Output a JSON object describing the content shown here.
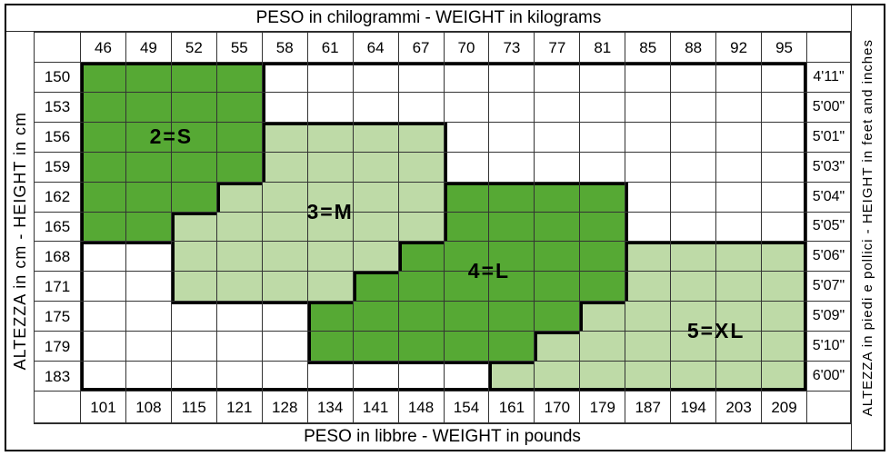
{
  "titles": {
    "top": "PESO in chilogrammi -  WEIGHT in kilograms",
    "bottom": "PESO in libbre -  WEIGHT in pounds",
    "left": "ALTEZZA in cm  -  HEIGHT in cm",
    "right": "ALTEZZA in piedi e pollici - HEIGHT in feet and inches"
  },
  "colors": {
    "size_fill_dark": "#56A934",
    "size_fill_light": "#BEDAA7",
    "grid_line": "#333333",
    "region_border": "#000000",
    "background": "#FFFFFF"
  },
  "chart_data": {
    "type": "heatmap",
    "x_axis_top": {
      "label": "PESO in chilogrammi -  WEIGHT in kilograms",
      "unit": "kg",
      "ticks": [
        46,
        49,
        52,
        55,
        58,
        61,
        64,
        67,
        70,
        73,
        77,
        81,
        85,
        88,
        92,
        95
      ]
    },
    "x_axis_bottom": {
      "label": "PESO in libbre -  WEIGHT in pounds",
      "unit": "lb",
      "ticks": [
        101,
        108,
        115,
        121,
        128,
        134,
        141,
        148,
        154,
        161,
        170,
        179,
        187,
        194,
        203,
        209
      ]
    },
    "y_axis_left": {
      "label": "ALTEZZA in cm  -  HEIGHT in cm",
      "unit": "cm",
      "ticks": [
        150,
        153,
        156,
        159,
        162,
        165,
        168,
        171,
        175,
        179,
        183
      ]
    },
    "y_axis_right": {
      "label": "ALTEZZA in piedi e pollici - HEIGHT in feet and inches",
      "unit": "ft-in",
      "ticks": [
        "4'11\"",
        "5'00\"",
        "5'01\"",
        "5'03\"",
        "5'04\"",
        "5'05\"",
        "5'06\"",
        "5'07\"",
        "5'09\"",
        "5'10\"",
        "6'00\""
      ]
    },
    "regions": [
      {
        "id": "S",
        "label": "2=S",
        "shade": "dark",
        "kg_span_by_cm": {
          "150": [
            46,
            55
          ],
          "153": [
            46,
            55
          ],
          "156": [
            46,
            55
          ],
          "159": [
            46,
            55
          ],
          "162": [
            46,
            52
          ],
          "165": [
            46,
            49
          ]
        }
      },
      {
        "id": "M",
        "label": "3=M",
        "shade": "light",
        "kg_span_by_cm": {
          "156": [
            58,
            67
          ],
          "159": [
            58,
            67
          ],
          "162": [
            55,
            67
          ],
          "165": [
            52,
            67
          ],
          "168": [
            52,
            64
          ],
          "171": [
            52,
            61
          ]
        }
      },
      {
        "id": "L",
        "label": "4=L",
        "shade": "dark",
        "kg_span_by_cm": {
          "162": [
            70,
            81
          ],
          "165": [
            70,
            81
          ],
          "168": [
            67,
            81
          ],
          "171": [
            64,
            81
          ],
          "175": [
            61,
            77
          ],
          "179": [
            61,
            73
          ]
        }
      },
      {
        "id": "XL",
        "label": "5=XL",
        "shade": "light",
        "kg_span_by_cm": {
          "168": [
            85,
            95
          ],
          "171": [
            85,
            95
          ],
          "175": [
            81,
            95
          ],
          "179": [
            77,
            95
          ],
          "183": [
            73,
            95
          ]
        }
      }
    ],
    "region_labels": [
      {
        "text": "2=S",
        "cm_span": [
          156,
          156
        ],
        "kg_span": [
          46,
          55
        ]
      },
      {
        "text": "3=M",
        "cm_span": [
          162,
          165
        ],
        "kg_span": [
          55,
          67
        ]
      },
      {
        "text": "4=L",
        "cm_span": [
          168,
          171
        ],
        "kg_span": [
          64,
          81
        ]
      },
      {
        "text": "5=XL",
        "cm_span": [
          175,
          179
        ],
        "kg_span": [
          85,
          95
        ]
      }
    ]
  }
}
